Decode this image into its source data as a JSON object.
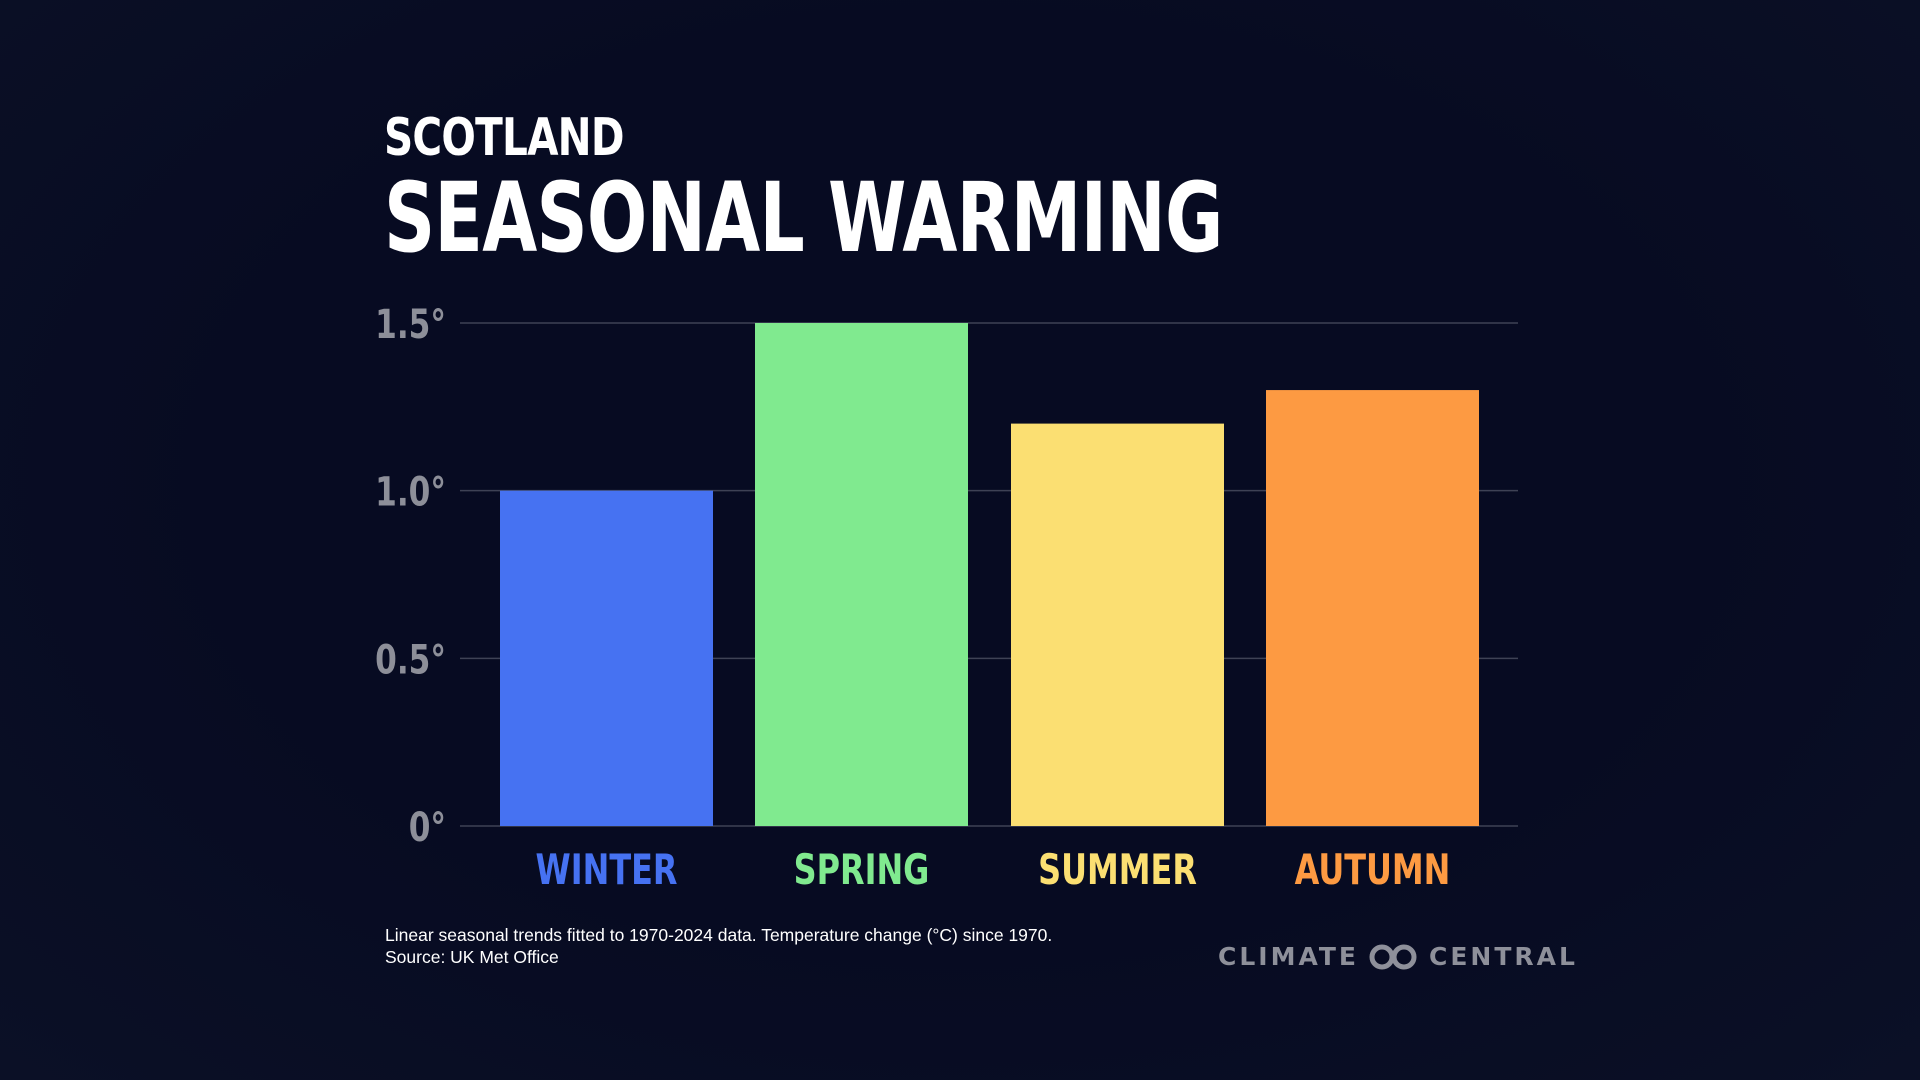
{
  "header": {
    "subtitle": "SCOTLAND",
    "title": "SEASONAL WARMING"
  },
  "chart_data": {
    "type": "bar",
    "title": "SEASONAL WARMING",
    "subtitle": "SCOTLAND",
    "xlabel": "",
    "ylabel": "",
    "categories": [
      "WINTER",
      "SPRING",
      "SUMMER",
      "AUTUMN"
    ],
    "values": [
      1.0,
      1.5,
      1.2,
      1.3
    ],
    "colors": [
      "#4672f2",
      "#80ea8f",
      "#fbdf72",
      "#fd9a42"
    ],
    "ylim": [
      0,
      1.5
    ],
    "yticks": [
      0,
      0.5,
      1.0,
      1.5
    ],
    "ytick_labels": [
      "0°",
      "0.5°",
      "1.0°",
      "1.5°"
    ],
    "grid": true
  },
  "footnote": {
    "line1": "Linear seasonal trends fitted to 1970-2024 data. Temperature change (°C) since 1970.",
    "line2": "Source: UK Met Office"
  },
  "brand": {
    "left": "CLIMATE",
    "right": "CENTRAL",
    "icon": "climate-central-logo-icon"
  }
}
